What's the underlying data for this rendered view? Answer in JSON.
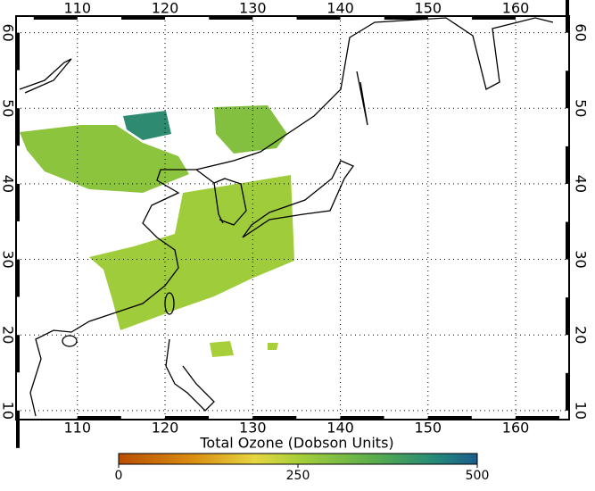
{
  "map": {
    "lonlim": [
      103,
      166.1
    ],
    "latlim": [
      8.8,
      62.2
    ],
    "lonticks": [
      110,
      120,
      130,
      140,
      150,
      160
    ],
    "latticks": [
      10,
      20,
      30,
      40,
      50,
      60
    ],
    "colorbar": {
      "title": "Total Ozone (Dobson Units)",
      "lim": [
        0,
        500
      ],
      "ticks": [
        0,
        250,
        500
      ]
    }
  }
}
